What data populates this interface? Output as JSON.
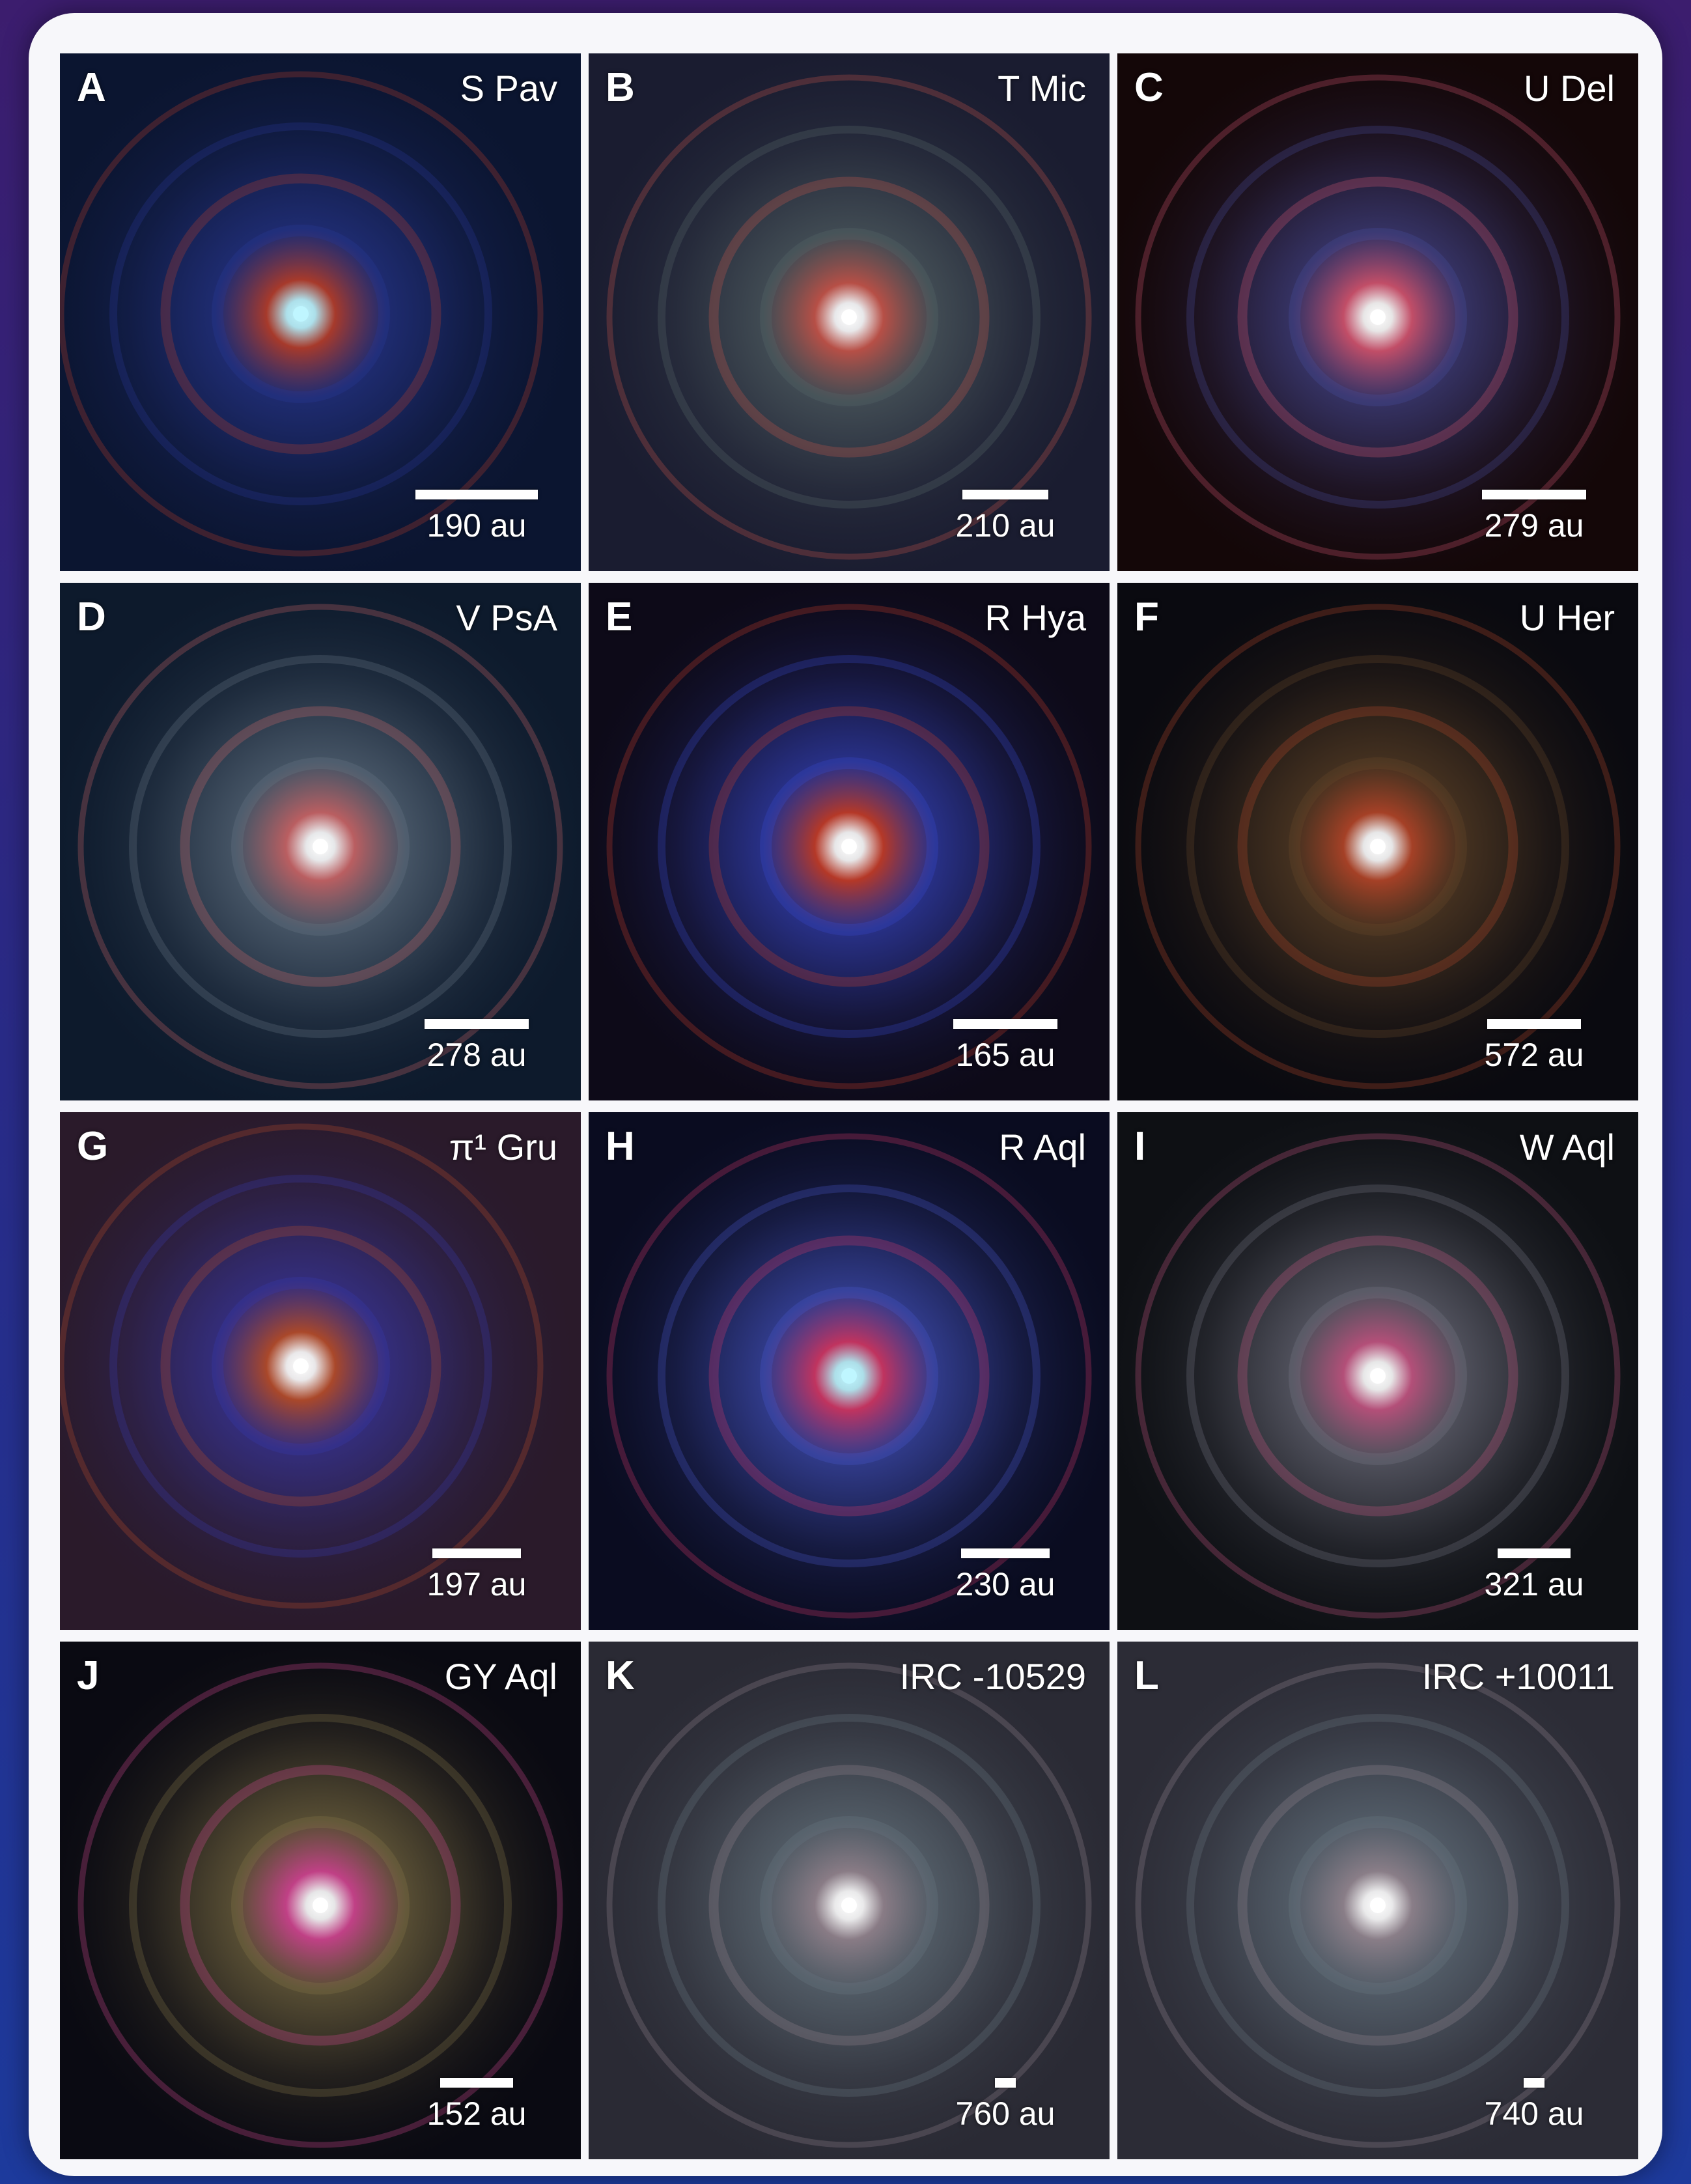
{
  "panels": [
    {
      "letter": "A",
      "name": "S Pav",
      "scale": "190 au",
      "bar": 0.235,
      "palette": {
        "bg": "#0b1530",
        "ring": "#2b3a9a",
        "accent": "#c2402a",
        "core": "#bff6ff"
      }
    },
    {
      "letter": "B",
      "name": "T Mic",
      "scale": "210 au",
      "bar": 0.166,
      "palette": {
        "bg": "#1a1c30",
        "ring": "#5a6a6a",
        "accent": "#d2584a",
        "core": "#ffffff"
      }
    },
    {
      "letter": "C",
      "name": "U Del",
      "scale": "279 au",
      "bar": 0.2,
      "palette": {
        "bg": "#140708",
        "ring": "#4b4fa0",
        "accent": "#e05a78",
        "core": "#ffffff"
      }
    },
    {
      "letter": "D",
      "name": "V PsA",
      "scale": "278 au",
      "bar": 0.2,
      "palette": {
        "bg": "#0d1a2c",
        "ring": "#6a7a8a",
        "accent": "#d86a6a",
        "core": "#ffffff"
      }
    },
    {
      "letter": "E",
      "name": "R Hya",
      "scale": "165 au",
      "bar": 0.2,
      "palette": {
        "bg": "#0d0a18",
        "ring": "#3a4ad0",
        "accent": "#d2402a",
        "core": "#ffffff"
      }
    },
    {
      "letter": "F",
      "name": "U Her",
      "scale": "572 au",
      "bar": 0.18,
      "palette": {
        "bg": "#0a0a10",
        "ring": "#6a4a2a",
        "accent": "#c04a2a",
        "core": "#ffffff"
      }
    },
    {
      "letter": "G",
      "name": "π¹ Gru",
      "scale": "197 au",
      "bar": 0.17,
      "palette": {
        "bg": "#2a1a2a",
        "ring": "#3a3ab0",
        "accent": "#c0502a",
        "core": "#ffffff"
      }
    },
    {
      "letter": "H",
      "name": "R Aql",
      "scale": "230 au",
      "bar": 0.17,
      "palette": {
        "bg": "#0a0c20",
        "ring": "#4a5ad0",
        "accent": "#e03a6a",
        "core": "#bff6ff"
      }
    },
    {
      "letter": "I",
      "name": "W Aql",
      "scale": "321 au",
      "bar": 0.14,
      "palette": {
        "bg": "#0e1014",
        "ring": "#7a7a8a",
        "accent": "#d05a8a",
        "core": "#ffffff"
      }
    },
    {
      "letter": "J",
      "name": "GY Aql",
      "scale": "152 au",
      "bar": 0.14,
      "palette": {
        "bg": "#0a0a12",
        "ring": "#8a7a4a",
        "accent": "#e04a9a",
        "core": "#ffffff"
      }
    },
    {
      "letter": "K",
      "name": "IRC -10529",
      "scale": "760 au",
      "bar": 0.04,
      "palette": {
        "bg": "#2a2a34",
        "ring": "#6a7a84",
        "accent": "#9a8a94",
        "core": "#ffffff"
      }
    },
    {
      "letter": "L",
      "name": "IRC +10011",
      "scale": "740 au",
      "bar": 0.04,
      "palette": {
        "bg": "#2c2c36",
        "ring": "#6a7a86",
        "accent": "#9a8c96",
        "core": "#ffffff"
      }
    }
  ]
}
